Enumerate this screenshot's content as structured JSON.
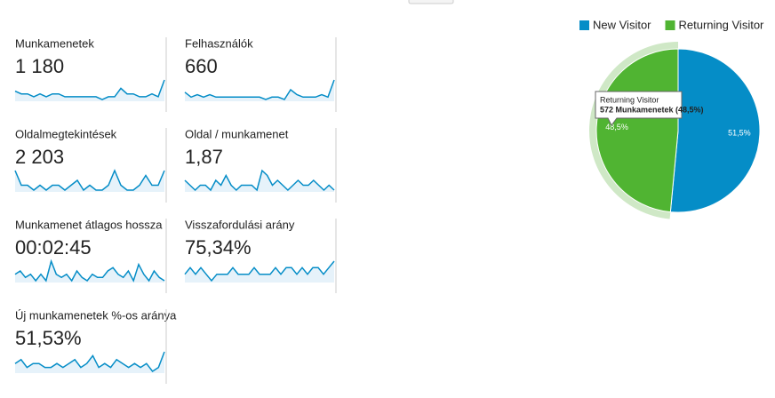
{
  "metrics": [
    {
      "label": "Munkamenetek",
      "value": "1 180",
      "sparkline": [
        4,
        3,
        3,
        2,
        3,
        2,
        3,
        3,
        2,
        2,
        2,
        2,
        2,
        2,
        1,
        2,
        2,
        5,
        3,
        3,
        2,
        2,
        3,
        2,
        8
      ]
    },
    {
      "label": "Felhasználók",
      "value": "660",
      "sparkline": [
        4,
        2,
        3,
        2,
        3,
        2,
        2,
        2,
        2,
        2,
        2,
        2,
        2,
        1,
        2,
        2,
        1,
        5,
        3,
        2,
        2,
        2,
        3,
        2,
        9
      ]
    },
    {
      "label": "Oldalmegtekintések",
      "value": "2 203",
      "sparkline": [
        6,
        3,
        3,
        2,
        3,
        2,
        3,
        3,
        2,
        3,
        4,
        2,
        3,
        2,
        2,
        3,
        6,
        3,
        2,
        2,
        3,
        5,
        3,
        3,
        6
      ]
    },
    {
      "label": "Oldal / munkamenet",
      "value": "1,87",
      "sparkline": [
        4,
        3,
        2,
        3,
        3,
        2,
        4,
        3,
        5,
        3,
        2,
        3,
        3,
        3,
        2,
        6,
        5,
        3,
        4,
        3,
        2,
        3,
        4,
        3,
        3,
        4,
        3,
        2,
        3,
        2
      ]
    },
    {
      "label": "Munkamenet átlagos hossza",
      "value": "00:02:45",
      "sparkline": [
        4,
        5,
        3,
        4,
        2,
        4,
        2,
        8,
        4,
        3,
        4,
        2,
        5,
        3,
        2,
        4,
        3,
        3,
        5,
        6,
        4,
        3,
        5,
        2,
        7,
        4,
        2,
        5,
        3,
        2
      ]
    },
    {
      "label": "Visszafordulási arány",
      "value": "75,34%",
      "sparkline": [
        6,
        7,
        6,
        7,
        6,
        5,
        6,
        6,
        6,
        7,
        6,
        6,
        6,
        7,
        6,
        6,
        6,
        7,
        6,
        7,
        7,
        6,
        7,
        6,
        7,
        7,
        6,
        7,
        8
      ]
    },
    {
      "label": "Új munkamenetek %-os aránya",
      "value": "51,53%",
      "sparkline": [
        4,
        5,
        3,
        4,
        4,
        3,
        3,
        4,
        3,
        4,
        5,
        3,
        4,
        6,
        3,
        4,
        3,
        5,
        4,
        3,
        4,
        3,
        4,
        2,
        3,
        7
      ]
    }
  ],
  "chart_data": {
    "type": "pie",
    "categories": [
      "New Visitor",
      "Returning Visitor"
    ],
    "values": [
      51.5,
      48.5
    ],
    "value_labels": [
      "51,5%",
      "48,5%"
    ],
    "colors": [
      "#058dc7",
      "#50b432"
    ],
    "legend": "top",
    "tooltip": {
      "title": "Returning Visitor",
      "text": "572 Munkamenetek (48,5%)"
    }
  }
}
